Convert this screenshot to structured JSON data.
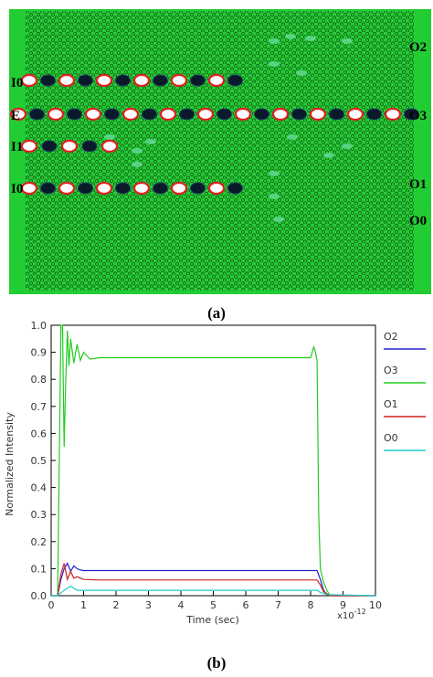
{
  "panel_a": {
    "caption": "(a)",
    "port_labels": {
      "I0_top": "I0",
      "E": "E",
      "I1": "I1",
      "I0_bottom": "I0",
      "O2": "O2",
      "O3": "O3",
      "O1": "O1",
      "O0": "O0"
    },
    "colors": {
      "background": "#22cc33",
      "hole": "#1a4a1a",
      "hot": "#ffffff",
      "ring": "#e02020",
      "dark": "#0a1a2a"
    }
  },
  "panel_b": {
    "caption": "(b)"
  },
  "chart_data": {
    "type": "line",
    "xlabel": "Time (sec)",
    "ylabel": "Normalized Intensity",
    "x_multiplier_label": "x10",
    "x_multiplier_exp": "-12",
    "xlim": [
      0,
      10
    ],
    "ylim": [
      0,
      1
    ],
    "x_ticks": [
      "0",
      "1",
      "2",
      "3",
      "4",
      "5",
      "6",
      "7",
      "8",
      "9",
      "10"
    ],
    "y_ticks": [
      "0.0",
      "0.1",
      "0.2",
      "0.3",
      "0.4",
      "0.5",
      "0.6",
      "0.7",
      "0.8",
      "0.9",
      "1.0"
    ],
    "grid": false,
    "legend_placement": "right",
    "series": [
      {
        "name": "O2",
        "color": "#2222cc",
        "x": [
          0,
          0.2,
          0.3,
          0.4,
          0.5,
          0.6,
          0.7,
          0.8,
          0.9,
          1.0,
          1.5,
          3,
          5,
          8.2,
          8.3,
          8.4,
          8.5,
          8.7,
          10
        ],
        "y": [
          0,
          0,
          0.06,
          0.1,
          0.12,
          0.09,
          0.11,
          0.1,
          0.095,
          0.093,
          0.093,
          0.093,
          0.093,
          0.093,
          0.06,
          0.02,
          0.005,
          0,
          0
        ]
      },
      {
        "name": "O3",
        "color": "#22cc22",
        "x": [
          0,
          0.2,
          0.25,
          0.3,
          0.35,
          0.4,
          0.45,
          0.5,
          0.55,
          0.6,
          0.7,
          0.8,
          0.9,
          1.0,
          1.2,
          1.5,
          2,
          4,
          6,
          8.0,
          8.1,
          8.15,
          8.2,
          8.25,
          8.3,
          8.4,
          8.5,
          8.6,
          10
        ],
        "y": [
          0,
          0,
          0.5,
          1.0,
          1.0,
          0.55,
          0.8,
          0.98,
          0.85,
          0.95,
          0.86,
          0.93,
          0.87,
          0.9,
          0.875,
          0.88,
          0.88,
          0.88,
          0.88,
          0.88,
          0.92,
          0.9,
          0.87,
          0.3,
          0.1,
          0.05,
          0.02,
          0,
          0
        ]
      },
      {
        "name": "O1",
        "color": "#cc2222",
        "x": [
          0,
          0.2,
          0.3,
          0.4,
          0.5,
          0.6,
          0.7,
          0.8,
          1.0,
          1.5,
          3,
          5,
          8.2,
          8.3,
          8.4,
          8.6,
          10
        ],
        "y": [
          0,
          0,
          0.08,
          0.12,
          0.06,
          0.09,
          0.065,
          0.07,
          0.06,
          0.058,
          0.058,
          0.058,
          0.058,
          0.04,
          0.015,
          0,
          0
        ]
      },
      {
        "name": "O0",
        "color": "#22cccc",
        "x": [
          0,
          0.2,
          0.4,
          0.6,
          0.8,
          1.0,
          2,
          4,
          8.2,
          8.3,
          8.5,
          10
        ],
        "y": [
          0,
          0,
          0.02,
          0.035,
          0.02,
          0.02,
          0.02,
          0.02,
          0.02,
          0.012,
          0.004,
          0
        ]
      }
    ]
  }
}
